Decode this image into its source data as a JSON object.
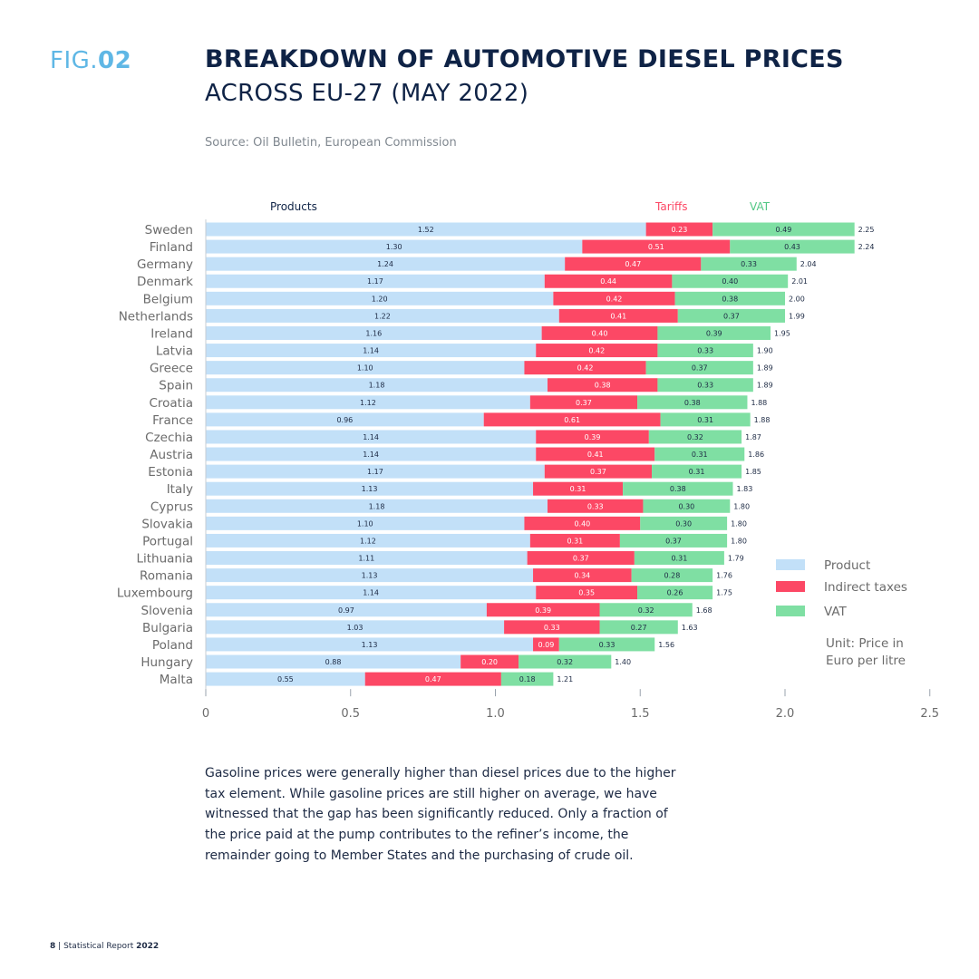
{
  "figure": {
    "prefix": "FIG.",
    "number": "02"
  },
  "title": {
    "line1": "BREAKDOWN OF AUTOMOTIVE DIESEL PRICES",
    "line2": "ACROSS EU-27 (MAY 2022)"
  },
  "source": "Source: Oil Bulletin, European Commission",
  "caption": "Gasoline prices were generally higher than diesel prices due to the higher tax element. While gasoline prices are still higher on average, we have witnessed that the gap has been significantly reduced. Only a fraction of the price paid at the pump contributes to the refiner’s income, the remainder going to Member States and the purchasing of crude oil.",
  "footer": {
    "page": "8",
    "separator": "|",
    "report": "Statistical Report",
    "year": "2022"
  },
  "colors": {
    "product": "#c2e0f8",
    "tariffs": "#fc4865",
    "vat": "#7fdfa3",
    "header_products": "#0f2346",
    "fig_accent": "#5fb7e5"
  },
  "chart_data": {
    "type": "bar",
    "orientation": "horizontal",
    "stacked": true,
    "column_headers": {
      "products": "Products",
      "tariffs": "Tariffs",
      "vat": "VAT"
    },
    "categories": [
      "Sweden",
      "Finland",
      "Germany",
      "Denmark",
      "Belgium",
      "Netherlands",
      "Ireland",
      "Latvia",
      "Greece",
      "Spain",
      "Croatia",
      "France",
      "Czechia",
      "Austria",
      "Estonia",
      "Italy",
      "Cyprus",
      "Slovakia",
      "Portugal",
      "Lithuania",
      "Romania",
      "Luxembourg",
      "Slovenia",
      "Bulgaria",
      "Poland",
      "Hungary",
      "Malta"
    ],
    "series": [
      {
        "name": "Product",
        "values": [
          1.52,
          1.3,
          1.24,
          1.17,
          1.2,
          1.22,
          1.16,
          1.14,
          1.1,
          1.18,
          1.12,
          0.96,
          1.14,
          1.14,
          1.17,
          1.13,
          1.18,
          1.1,
          1.12,
          1.11,
          1.13,
          1.14,
          0.97,
          1.03,
          1.13,
          0.88,
          0.55
        ]
      },
      {
        "name": "Indirect taxes",
        "values": [
          0.23,
          0.51,
          0.47,
          0.44,
          0.42,
          0.41,
          0.4,
          0.42,
          0.42,
          0.38,
          0.37,
          0.61,
          0.39,
          0.41,
          0.37,
          0.31,
          0.33,
          0.4,
          0.31,
          0.37,
          0.34,
          0.35,
          0.39,
          0.33,
          0.09,
          0.2,
          0.47
        ]
      },
      {
        "name": "VAT",
        "values": [
          0.49,
          0.43,
          0.33,
          0.4,
          0.38,
          0.37,
          0.39,
          0.33,
          0.37,
          0.33,
          0.38,
          0.31,
          0.32,
          0.31,
          0.31,
          0.38,
          0.3,
          0.3,
          0.37,
          0.31,
          0.28,
          0.26,
          0.32,
          0.27,
          0.33,
          0.32,
          0.18
        ]
      }
    ],
    "totals": [
      2.25,
      2.24,
      2.04,
      2.01,
      2.0,
      1.99,
      1.95,
      1.9,
      1.89,
      1.89,
      1.88,
      1.88,
      1.87,
      1.86,
      1.85,
      1.83,
      1.8,
      1.8,
      1.8,
      1.79,
      1.76,
      1.75,
      1.68,
      1.63,
      1.56,
      1.4,
      1.21
    ],
    "x_ticks": [
      "0",
      "0.5",
      "1.0",
      "1.5",
      "2.0",
      "2.5"
    ],
    "xlim": [
      0,
      2.5
    ],
    "legend": {
      "position": "right",
      "items": [
        "Product",
        "Indirect taxes",
        "VAT"
      ]
    },
    "unit_note": [
      "Unit: Price in",
      "Euro per litre"
    ],
    "grid": false
  }
}
